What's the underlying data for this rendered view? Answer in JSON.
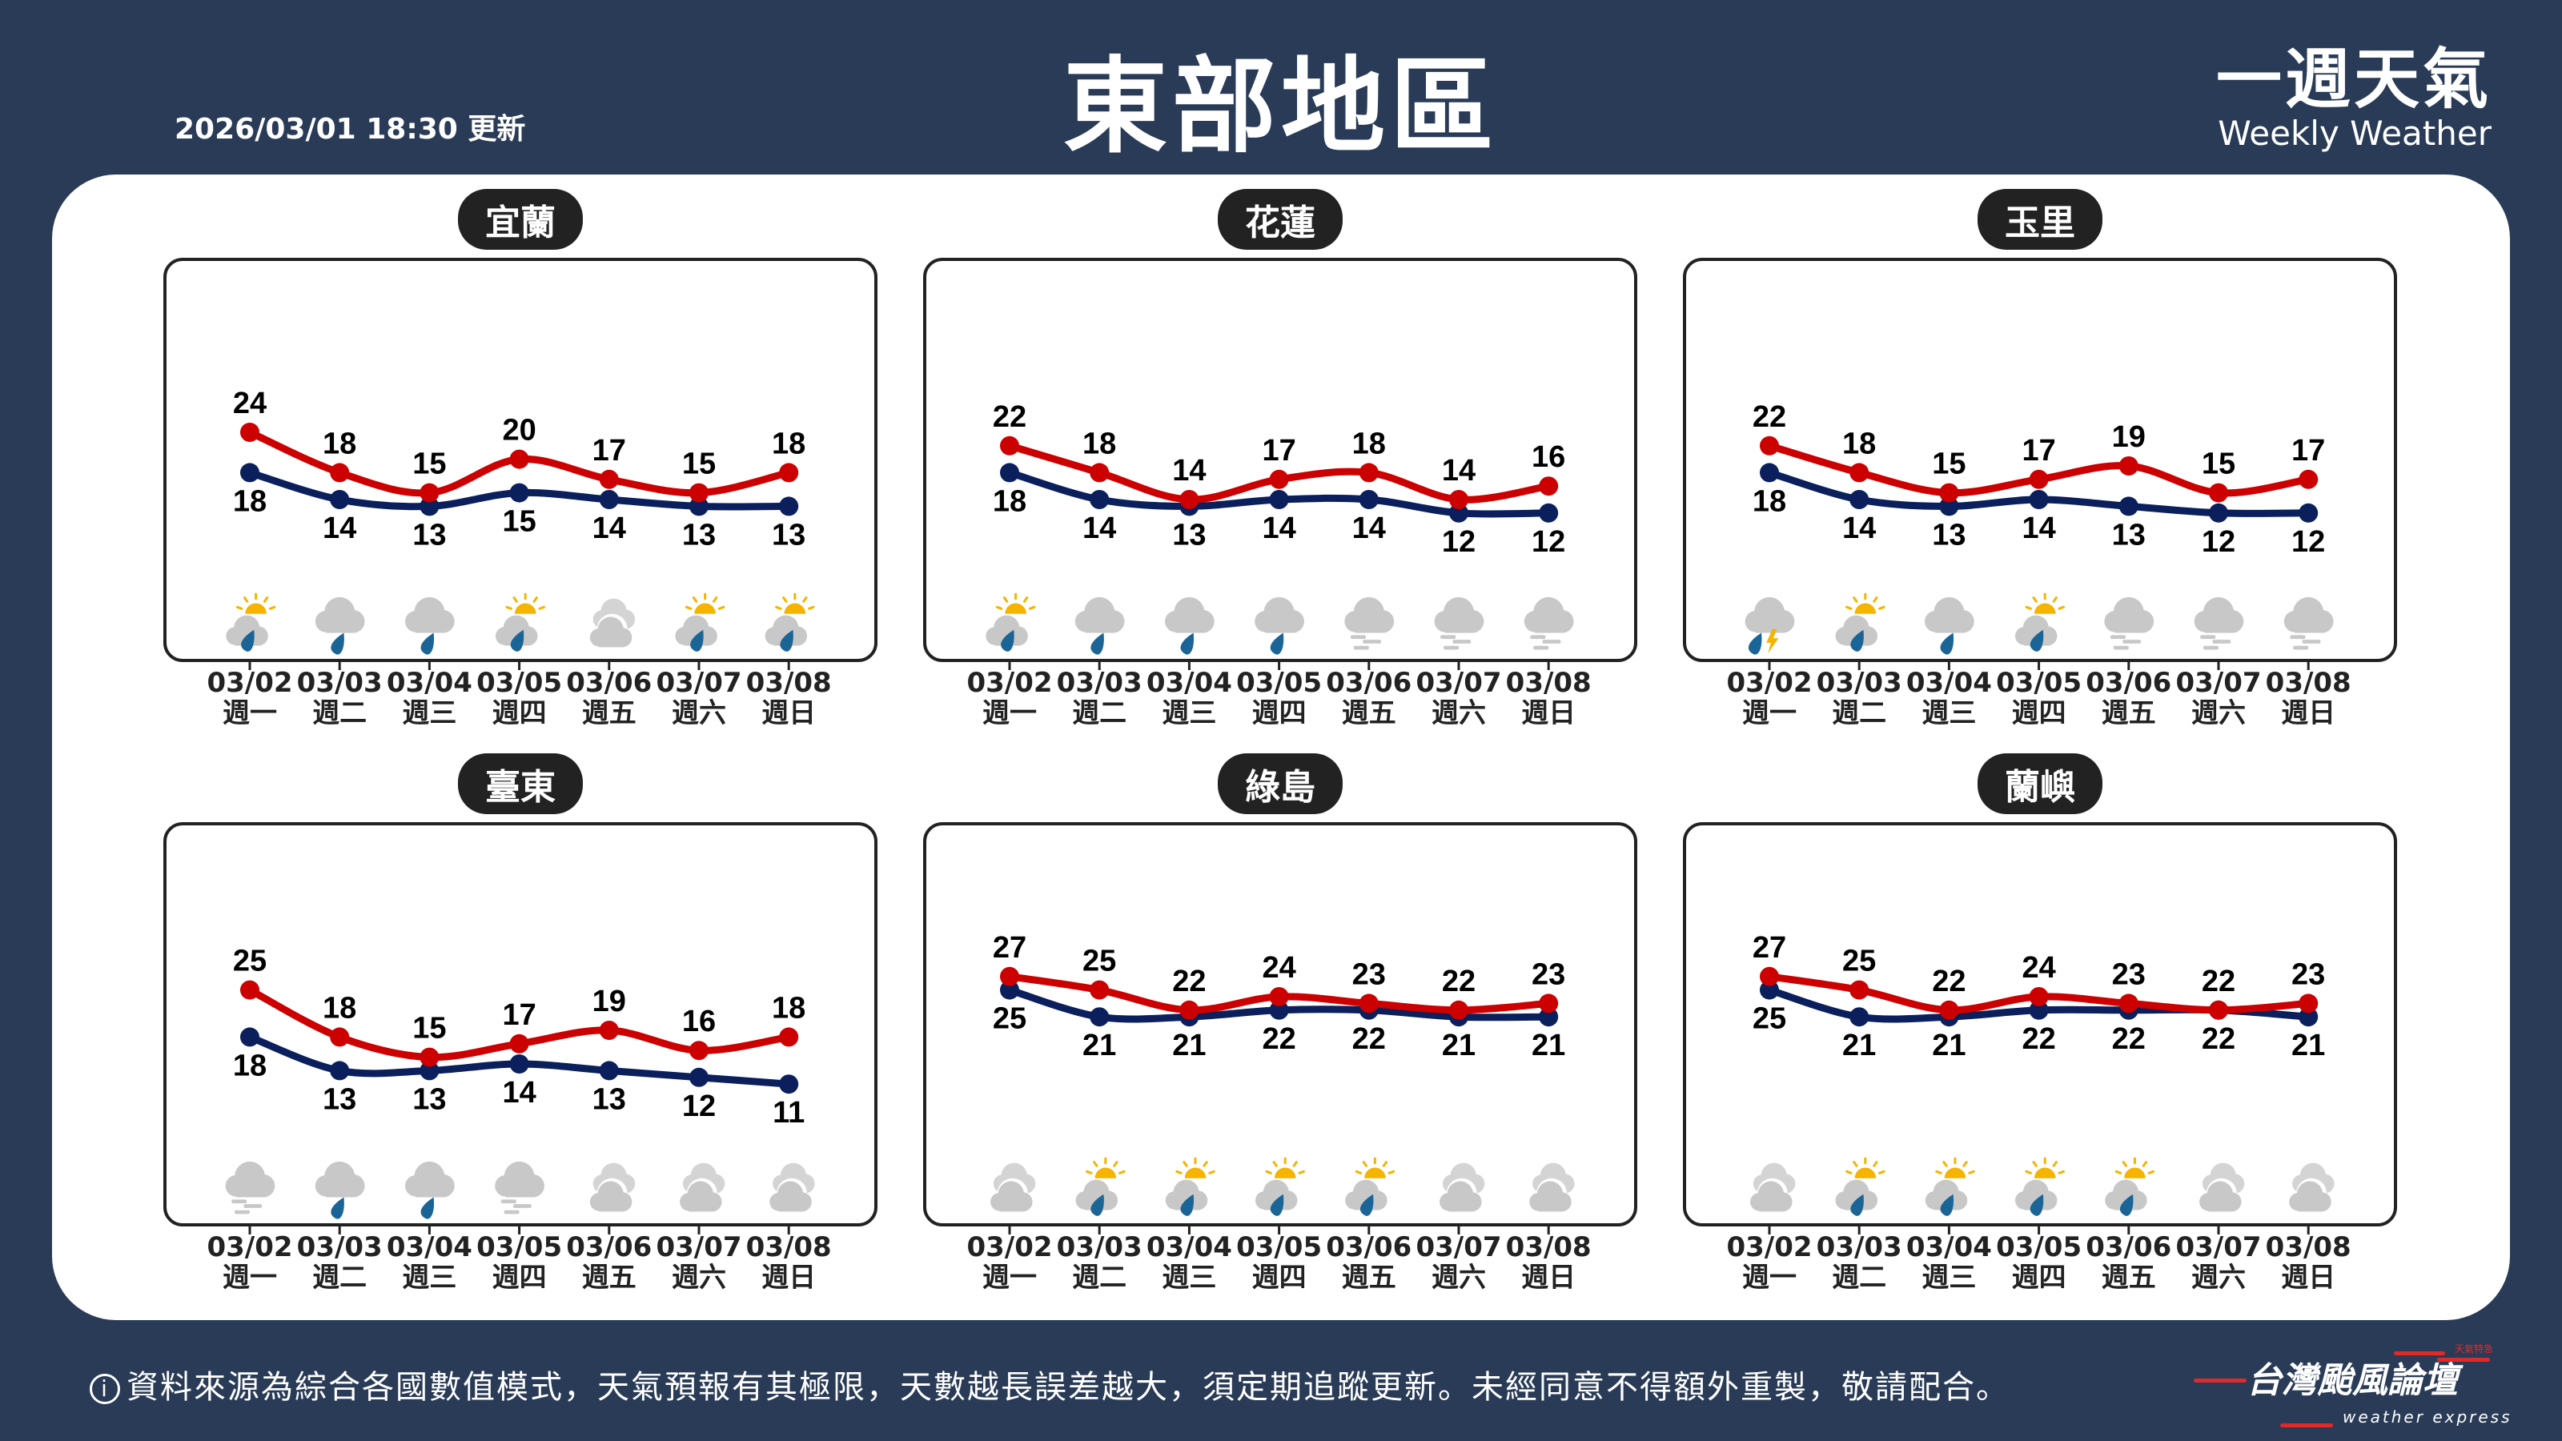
{
  "header": {
    "title": "東部地區",
    "updated": "2026/03/01 18:30 更新",
    "brand_zh": "一週天氣",
    "brand_en": "Weekly Weather"
  },
  "footer": {
    "info_icon": "info-circle-icon",
    "note": "資料來源為綜合各國數值模式，天氣預報有其極限，天數越長誤差越大，須定期追蹤更新。未經同意不得額外重製，敬請配合。",
    "logo_main": "台灣颱風論壇",
    "logo_sub": "weather express",
    "logo_tag": "天氣特急"
  },
  "colors": {
    "background": "#293b56",
    "high": "#cc0000",
    "low": "#0a1f5c",
    "cloud": "#c8c8c8",
    "sun": "#f5b400",
    "rain": "#1a6496"
  },
  "chart_data": [
    {
      "type": "line",
      "title": "宜蘭",
      "categories": [
        "03/02",
        "03/03",
        "03/04",
        "03/05",
        "03/06",
        "03/07",
        "03/08"
      ],
      "weekdays": [
        "週一",
        "週二",
        "週三",
        "週四",
        "週五",
        "週六",
        "週日"
      ],
      "series": [
        {
          "values": [
            24,
            18,
            15,
            20,
            17,
            15,
            18
          ]
        },
        {
          "values": [
            18,
            14,
            13,
            15,
            14,
            13,
            13
          ]
        }
      ],
      "icons": [
        "partly-cloudy-rain",
        "rain",
        "rain",
        "partly-cloudy-rain",
        "cloudy",
        "partly-cloudy-rain",
        "partly-cloudy-rain"
      ]
    },
    {
      "type": "line",
      "title": "花蓮",
      "categories": [
        "03/02",
        "03/03",
        "03/04",
        "03/05",
        "03/06",
        "03/07",
        "03/08"
      ],
      "weekdays": [
        "週一",
        "週二",
        "週三",
        "週四",
        "週五",
        "週六",
        "週日"
      ],
      "series": [
        {
          "values": [
            22,
            18,
            14,
            17,
            18,
            14,
            16
          ]
        },
        {
          "values": [
            18,
            14,
            13,
            14,
            14,
            12,
            12
          ]
        }
      ],
      "icons": [
        "partly-cloudy-rain",
        "rain",
        "rain",
        "rain",
        "fog",
        "fog",
        "fog"
      ]
    },
    {
      "type": "line",
      "title": "玉里",
      "categories": [
        "03/02",
        "03/03",
        "03/04",
        "03/05",
        "03/06",
        "03/07",
        "03/08"
      ],
      "weekdays": [
        "週一",
        "週二",
        "週三",
        "週四",
        "週五",
        "週六",
        "週日"
      ],
      "series": [
        {
          "values": [
            22,
            18,
            15,
            17,
            19,
            15,
            17
          ]
        },
        {
          "values": [
            18,
            14,
            13,
            14,
            13,
            12,
            12
          ]
        }
      ],
      "icons": [
        "thunderstorm",
        "partly-cloudy-rain",
        "rain",
        "partly-cloudy-rain",
        "fog",
        "fog",
        "fog"
      ]
    },
    {
      "type": "line",
      "title": "臺東",
      "categories": [
        "03/02",
        "03/03",
        "03/04",
        "03/05",
        "03/06",
        "03/07",
        "03/08"
      ],
      "weekdays": [
        "週一",
        "週二",
        "週三",
        "週四",
        "週五",
        "週六",
        "週日"
      ],
      "series": [
        {
          "values": [
            25,
            18,
            15,
            17,
            19,
            16,
            18
          ]
        },
        {
          "values": [
            18,
            13,
            13,
            14,
            13,
            12,
            11
          ]
        }
      ],
      "icons": [
        "fog",
        "rain",
        "rain",
        "fog",
        "cloudy",
        "cloudy",
        "cloudy"
      ]
    },
    {
      "type": "line",
      "title": "綠島",
      "categories": [
        "03/02",
        "03/03",
        "03/04",
        "03/05",
        "03/06",
        "03/07",
        "03/08"
      ],
      "weekdays": [
        "週一",
        "週二",
        "週三",
        "週四",
        "週五",
        "週六",
        "週日"
      ],
      "series": [
        {
          "values": [
            27,
            25,
            22,
            24,
            23,
            22,
            23
          ]
        },
        {
          "values": [
            25,
            21,
            21,
            22,
            22,
            21,
            21
          ]
        }
      ],
      "icons": [
        "cloudy",
        "partly-cloudy-rain",
        "partly-cloudy-rain",
        "partly-cloudy-rain",
        "partly-cloudy-rain",
        "cloudy",
        "cloudy"
      ]
    },
    {
      "type": "line",
      "title": "蘭嶼",
      "categories": [
        "03/02",
        "03/03",
        "03/04",
        "03/05",
        "03/06",
        "03/07",
        "03/08"
      ],
      "weekdays": [
        "週一",
        "週二",
        "週三",
        "週四",
        "週五",
        "週六",
        "週日"
      ],
      "series": [
        {
          "values": [
            27,
            25,
            22,
            24,
            23,
            22,
            23
          ]
        },
        {
          "values": [
            25,
            21,
            21,
            22,
            22,
            22,
            21
          ]
        }
      ],
      "icons": [
        "cloudy",
        "partly-cloudy-rain",
        "partly-cloudy-rain",
        "partly-cloudy-rain",
        "partly-cloudy-rain",
        "cloudy",
        "cloudy"
      ]
    }
  ]
}
